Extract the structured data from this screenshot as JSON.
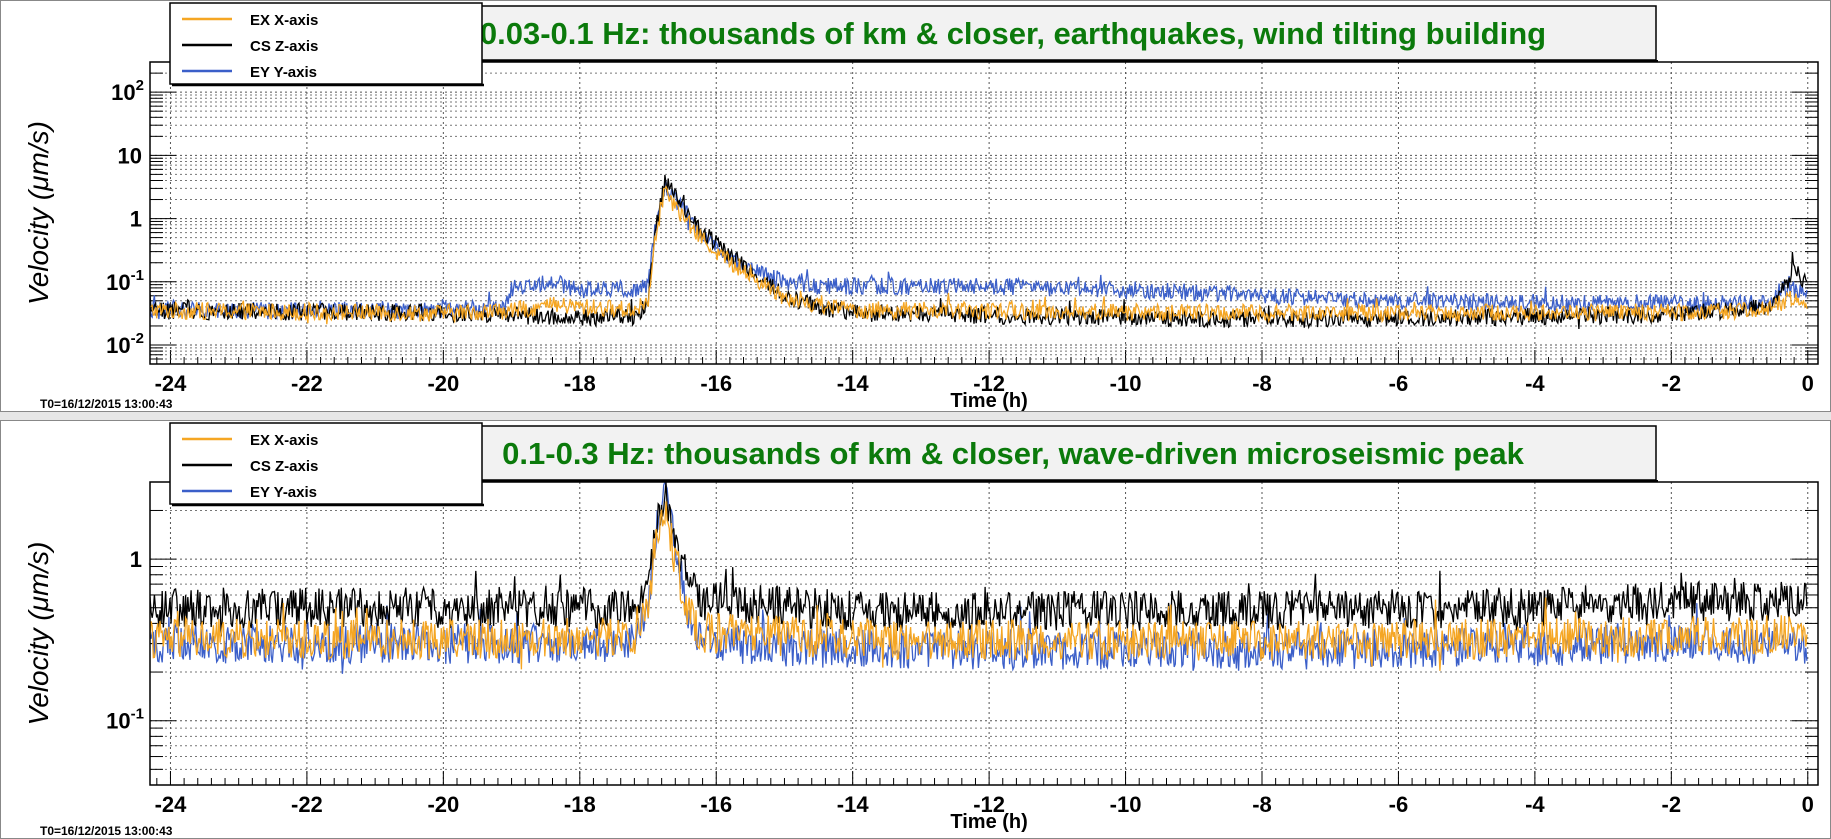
{
  "colors": {
    "title_text": "#0b7a0b",
    "title_box": "#f2f2f2",
    "separator": "#e6e6e6"
  },
  "chart_data": [
    {
      "type": "line",
      "title": "0.03-0.1 Hz: thousands of km & closer, earthquakes, wind tilting building",
      "xlabel": "Time (h)",
      "ylabel": "Velocity  (μm/s)",
      "t0": "T0=16/12/2015 13:00:43",
      "xlim": [
        -24.3,
        0.15
      ],
      "ylim": [
        0.005,
        300
      ],
      "yscale": "log",
      "grid": true,
      "legend_position": "top-left",
      "x_ticks": [
        -24,
        -22,
        -20,
        -18,
        -16,
        -14,
        -12,
        -10,
        -8,
        -6,
        -4,
        -2,
        0
      ],
      "x_tick_labels": [
        "-24",
        "-22",
        "-20",
        "-18",
        "-16",
        "-14",
        "-12",
        "-10",
        "-8",
        "-6",
        "-4",
        "-2",
        "0"
      ],
      "y_ticks": [
        0.01,
        0.1,
        1,
        10,
        100
      ],
      "y_tick_labels": [
        {
          "base": "10",
          "exp": "-2"
        },
        {
          "base": "10",
          "exp": "-1"
        },
        {
          "base": "1",
          "exp": ""
        },
        {
          "base": "10",
          "exp": ""
        },
        {
          "base": "10",
          "exp": "2"
        }
      ],
      "series": [
        {
          "name": "EX X-axis",
          "color": "#f5a623",
          "points": [
            [
              -24.3,
              0.035
            ],
            [
              -20,
              0.032
            ],
            [
              -19.0,
              0.035
            ],
            [
              -18.4,
              0.042
            ],
            [
              -18.0,
              0.04
            ],
            [
              -17.2,
              0.036
            ],
            [
              -17.0,
              0.05
            ],
            [
              -16.9,
              0.5
            ],
            [
              -16.75,
              3.0
            ],
            [
              -16.6,
              1.5
            ],
            [
              -16.3,
              0.6
            ],
            [
              -16.0,
              0.3
            ],
            [
              -15.5,
              0.12
            ],
            [
              -15.0,
              0.06
            ],
            [
              -14.5,
              0.042
            ],
            [
              -14,
              0.036
            ],
            [
              -8,
              0.032
            ],
            [
              -2,
              0.033
            ],
            [
              -0.6,
              0.036
            ],
            [
              -0.3,
              0.05
            ],
            [
              -0.15,
              0.06
            ],
            [
              0,
              0.045
            ]
          ]
        },
        {
          "name": "CS Z-axis",
          "color": "#000000",
          "points": [
            [
              -24.3,
              0.035
            ],
            [
              -20,
              0.032
            ],
            [
              -19.0,
              0.03
            ],
            [
              -18.5,
              0.028
            ],
            [
              -17.2,
              0.027
            ],
            [
              -17.0,
              0.05
            ],
            [
              -16.9,
              0.6
            ],
            [
              -16.75,
              3.8
            ],
            [
              -16.6,
              2.2
            ],
            [
              -16.3,
              0.8
            ],
            [
              -16.0,
              0.4
            ],
            [
              -15.5,
              0.15
            ],
            [
              -15.0,
              0.06
            ],
            [
              -14.5,
              0.04
            ],
            [
              -14,
              0.032
            ],
            [
              -8,
              0.025
            ],
            [
              -2,
              0.03
            ],
            [
              -0.6,
              0.04
            ],
            [
              -0.3,
              0.1
            ],
            [
              -0.2,
              0.18
            ],
            [
              0,
              0.08
            ]
          ]
        },
        {
          "name": "EY Y-axis",
          "color": "#3b5fc9",
          "points": [
            [
              -24.3,
              0.035
            ],
            [
              -20,
              0.035
            ],
            [
              -19.1,
              0.04
            ],
            [
              -19.0,
              0.08
            ],
            [
              -18.4,
              0.1
            ],
            [
              -18.0,
              0.075
            ],
            [
              -17.2,
              0.075
            ],
            [
              -17.0,
              0.09
            ],
            [
              -16.9,
              0.6
            ],
            [
              -16.75,
              3.5
            ],
            [
              -16.6,
              2.0
            ],
            [
              -16.3,
              0.7
            ],
            [
              -16.0,
              0.35
            ],
            [
              -15.5,
              0.15
            ],
            [
              -15.0,
              0.1
            ],
            [
              -14.5,
              0.085
            ],
            [
              -12,
              0.085
            ],
            [
              -10,
              0.075
            ],
            [
              -6,
              0.05
            ],
            [
              -2,
              0.045
            ],
            [
              -0.6,
              0.045
            ],
            [
              -0.3,
              0.08
            ],
            [
              0,
              0.06
            ]
          ]
        }
      ]
    },
    {
      "type": "line",
      "title": "0.1-0.3 Hz: thousands of km & closer, wave-driven microseismic peak",
      "xlabel": "Time (h)",
      "ylabel": "Velocity  (μm/s)",
      "t0": "T0=16/12/2015 13:00:43",
      "xlim": [
        -24.3,
        0.15
      ],
      "ylim": [
        0.04,
        3
      ],
      "yscale": "log",
      "grid": true,
      "legend_position": "top-left",
      "x_ticks": [
        -24,
        -22,
        -20,
        -18,
        -16,
        -14,
        -12,
        -10,
        -8,
        -6,
        -4,
        -2,
        0
      ],
      "x_tick_labels": [
        "-24",
        "-22",
        "-20",
        "-18",
        "-16",
        "-14",
        "-12",
        "-10",
        "-8",
        "-6",
        "-4",
        "-2",
        "0"
      ],
      "y_ticks": [
        0.1,
        1
      ],
      "y_tick_labels": [
        {
          "base": "10",
          "exp": "-1"
        },
        {
          "base": "1",
          "exp": ""
        }
      ],
      "series": [
        {
          "name": "EX X-axis",
          "color": "#f5a623",
          "points": [
            [
              -24.3,
              0.32
            ],
            [
              -20,
              0.32
            ],
            [
              -17.2,
              0.33
            ],
            [
              -17.0,
              0.5
            ],
            [
              -16.9,
              1.2
            ],
            [
              -16.75,
              2.0
            ],
            [
              -16.6,
              1.0
            ],
            [
              -16.4,
              0.45
            ],
            [
              -16.2,
              0.35
            ],
            [
              -14,
              0.32
            ],
            [
              -8,
              0.31
            ],
            [
              -2,
              0.33
            ],
            [
              0,
              0.35
            ]
          ]
        },
        {
          "name": "CS Z-axis",
          "color": "#000000",
          "points": [
            [
              -24.3,
              0.5
            ],
            [
              -20,
              0.5
            ],
            [
              -17.2,
              0.5
            ],
            [
              -17.0,
              0.7
            ],
            [
              -16.9,
              1.4
            ],
            [
              -16.75,
              2.5
            ],
            [
              -16.6,
              1.3
            ],
            [
              -16.4,
              0.7
            ],
            [
              -16.2,
              0.55
            ],
            [
              -14,
              0.48
            ],
            [
              -8,
              0.48
            ],
            [
              -4,
              0.5
            ],
            [
              -2,
              0.55
            ],
            [
              0,
              0.55
            ]
          ]
        },
        {
          "name": "EY Y-axis",
          "color": "#3b5fc9",
          "points": [
            [
              -24.3,
              0.3
            ],
            [
              -20,
              0.3
            ],
            [
              -17.2,
              0.3
            ],
            [
              -17.0,
              0.5
            ],
            [
              -16.9,
              1.4
            ],
            [
              -16.75,
              2.8
            ],
            [
              -16.6,
              1.2
            ],
            [
              -16.4,
              0.45
            ],
            [
              -16.2,
              0.3
            ],
            [
              -14,
              0.28
            ],
            [
              -8,
              0.27
            ],
            [
              -2,
              0.3
            ],
            [
              0,
              0.3
            ]
          ]
        }
      ]
    }
  ]
}
